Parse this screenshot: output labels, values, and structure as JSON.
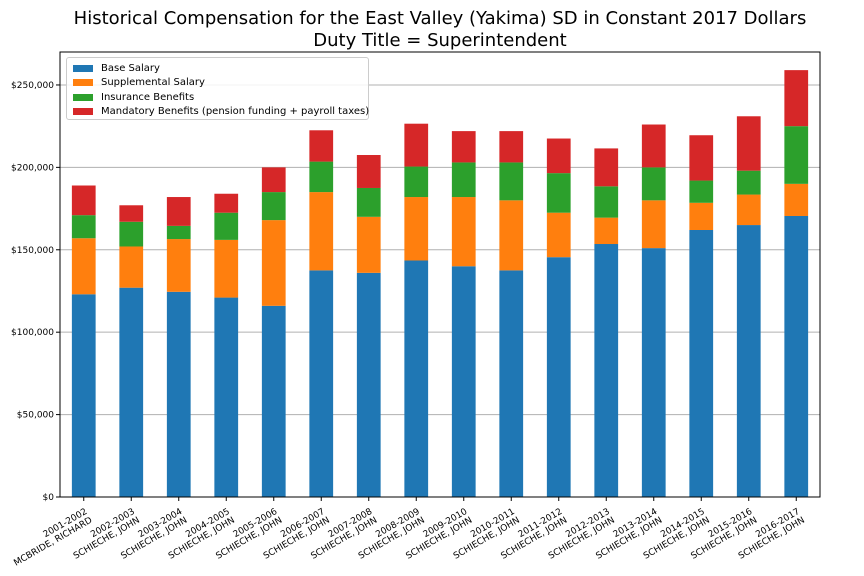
{
  "chart_data": {
    "type": "bar",
    "stacked": true,
    "title": "Historical Compensation for the East Valley (Yakima) SD in Constant 2017 Dollars",
    "subtitle": "Duty Title = Superintendent",
    "xlabel": "",
    "ylabel": "",
    "ylim": [
      0,
      270000
    ],
    "yticks": [
      0,
      50000,
      100000,
      150000,
      200000,
      250000
    ],
    "ytick_labels": [
      "$0",
      "$50,000",
      "$100,000",
      "$150,000",
      "$200,000",
      "$250,000"
    ],
    "grid": "horizontal",
    "legend_placement": "top-left",
    "categories": [
      "2001-2002\nMCBRIDE, RICHARD",
      "2002-2003\nSCHIECHE, JOHN",
      "2003-2004\nSCHIECHE, JOHN",
      "2004-2005\nSCHIECHE, JOHN",
      "2005-2006\nSCHIECHE, JOHN",
      "2006-2007\nSCHIECHE, JOHN",
      "2007-2008\nSCHIECHE, JOHN",
      "2008-2009\nSCHIECHE, JOHN",
      "2009-2010\nSCHIECHE, JOHN",
      "2010-2011\nSCHIECHE, JOHN",
      "2011-2012\nSCHIECHE, JOHN",
      "2012-2013\nSCHIECHE, JOHN",
      "2013-2014\nSCHIECHE, JOHN",
      "2014-2015\nSCHIECHE, JOHN",
      "2015-2016\nSCHIECHE, JOHN",
      "2016-2017\nSCHIECHE, JOHN"
    ],
    "series": [
      {
        "name": "Base Salary",
        "color": "#1f77b4",
        "values": [
          123000,
          127000,
          124500,
          121000,
          116000,
          137500,
          136000,
          143500,
          140000,
          137500,
          145500,
          153500,
          151000,
          162000,
          165000,
          170500
        ]
      },
      {
        "name": "Supplemental Salary",
        "color": "#ff7f0e",
        "values": [
          34000,
          25000,
          32000,
          35000,
          52000,
          47500,
          34000,
          38500,
          42000,
          42500,
          27000,
          16000,
          29000,
          16500,
          18500,
          19500
        ]
      },
      {
        "name": "Insurance Benefits",
        "color": "#2ca02c",
        "values": [
          14000,
          15000,
          8000,
          16500,
          17000,
          18500,
          17500,
          18500,
          21000,
          23000,
          24000,
          19000,
          20000,
          13500,
          14500,
          35000
        ]
      },
      {
        "name": "Mandatory Benefits (pension funding + payroll taxes)",
        "color": "#d62728",
        "values": [
          18000,
          10000,
          17500,
          11500,
          15000,
          19000,
          20000,
          26000,
          19000,
          19000,
          21000,
          23000,
          26000,
          27500,
          33000,
          34000
        ]
      }
    ]
  }
}
